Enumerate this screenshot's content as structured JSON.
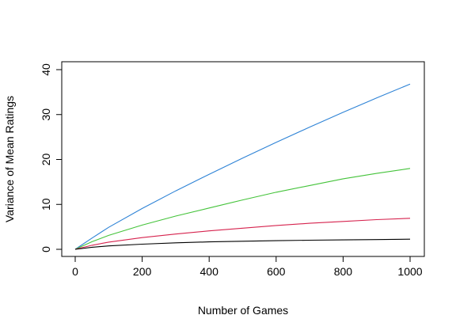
{
  "chart_data": {
    "type": "line",
    "title": "",
    "xlabel": "Number of Games",
    "ylabel": "Variance of Mean Ratings",
    "xlim": [
      0,
      1000
    ],
    "ylim": [
      0,
      40
    ],
    "xticks": [
      0,
      200,
      400,
      600,
      800,
      1000
    ],
    "yticks": [
      0,
      10,
      20,
      30,
      40
    ],
    "xtick_labels": [
      "0",
      "200",
      "400",
      "600",
      "800",
      "1000"
    ],
    "ytick_labels": [
      "0",
      "10",
      "20",
      "30",
      "40"
    ],
    "grid": false,
    "legend": "none",
    "x": [
      0,
      50,
      100,
      200,
      300,
      400,
      500,
      600,
      700,
      800,
      900,
      1000
    ],
    "series": [
      {
        "color": "#2e83d6",
        "values": [
          0,
          2.5,
          4.9,
          9.1,
          13.0,
          16.7,
          20.3,
          23.8,
          27.2,
          30.5,
          33.7,
          36.8
        ]
      },
      {
        "color": "#44c33a",
        "values": [
          0,
          1.7,
          3.1,
          5.4,
          7.4,
          9.2,
          11.0,
          12.7,
          14.2,
          15.7,
          16.9,
          18.0
        ]
      },
      {
        "color": "#d6234e",
        "values": [
          0,
          0.9,
          1.6,
          2.6,
          3.4,
          4.1,
          4.7,
          5.3,
          5.8,
          6.2,
          6.6,
          6.9
        ]
      },
      {
        "color": "#000000",
        "values": [
          0,
          0.45,
          0.75,
          1.15,
          1.45,
          1.65,
          1.8,
          1.92,
          2.02,
          2.1,
          2.17,
          2.25
        ]
      }
    ]
  }
}
